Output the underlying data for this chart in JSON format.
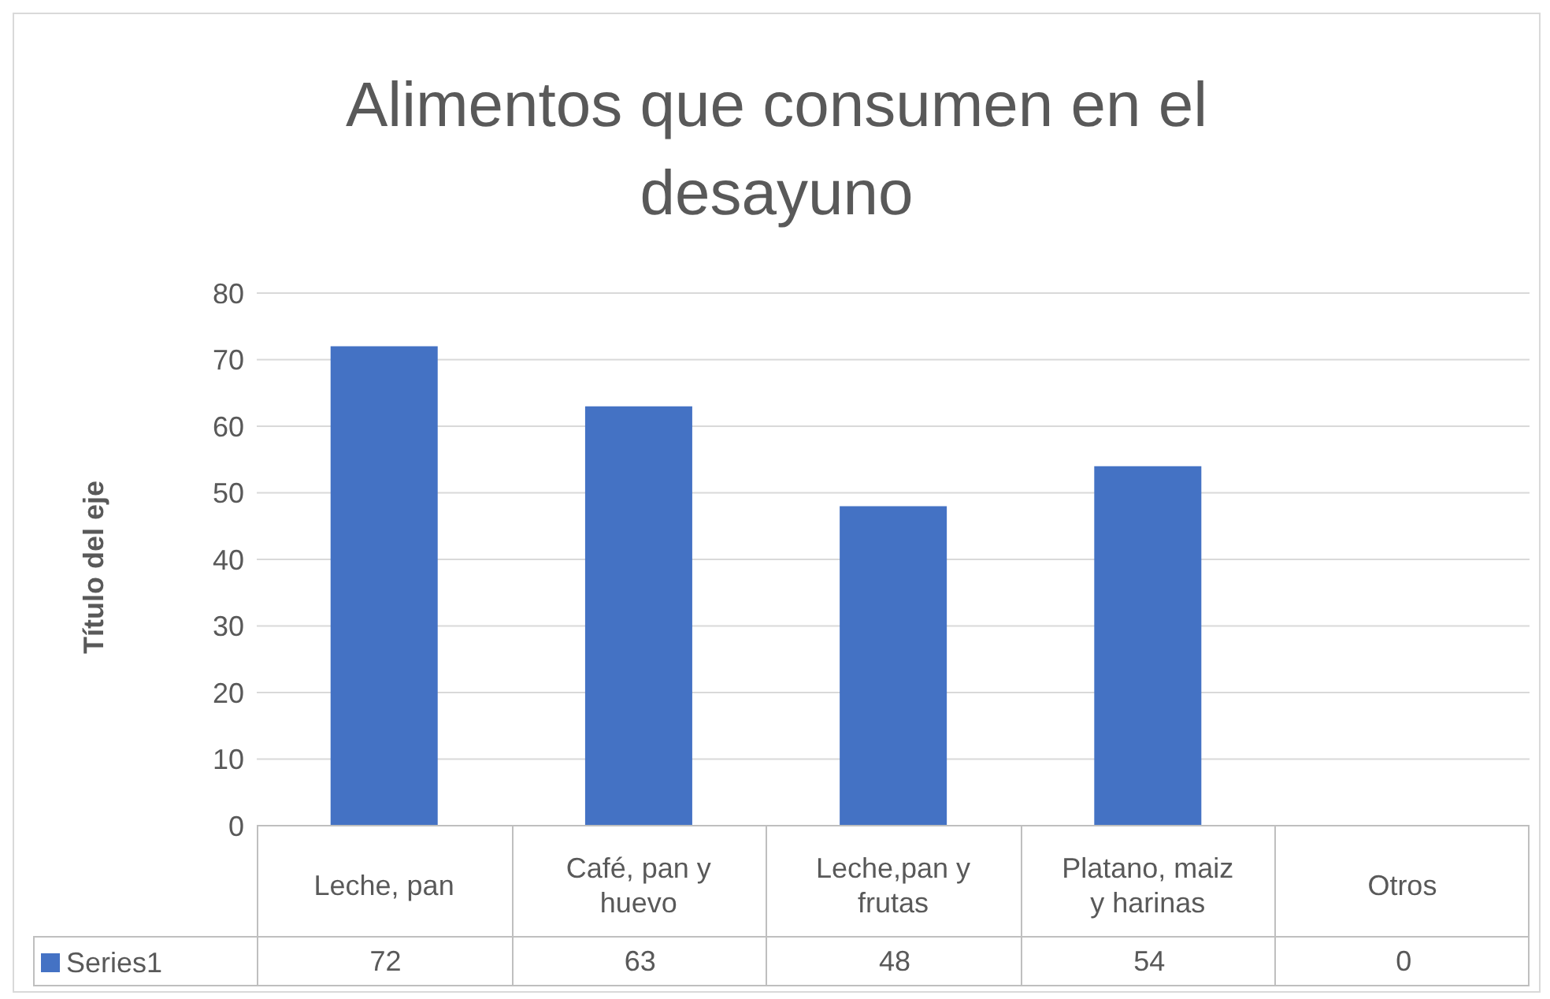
{
  "chart_data": {
    "type": "bar",
    "title": "Alimentos que consumen en el desayuno",
    "ylabel": "Título del eje",
    "categories": [
      "Leche, pan",
      "Café, pan y huevo",
      "Leche,pan y frutas",
      "Platano, maiz y harinas",
      "Otros"
    ],
    "series": [
      {
        "name": "Series1",
        "color": "#4472c4",
        "values": [
          72,
          63,
          48,
          54,
          0
        ]
      }
    ],
    "ylim": [
      0,
      80
    ],
    "yticks": [
      0,
      10,
      20,
      30,
      40,
      50,
      60,
      70,
      80
    ],
    "grid": "y",
    "legend": "bottom",
    "data_labels": true
  }
}
